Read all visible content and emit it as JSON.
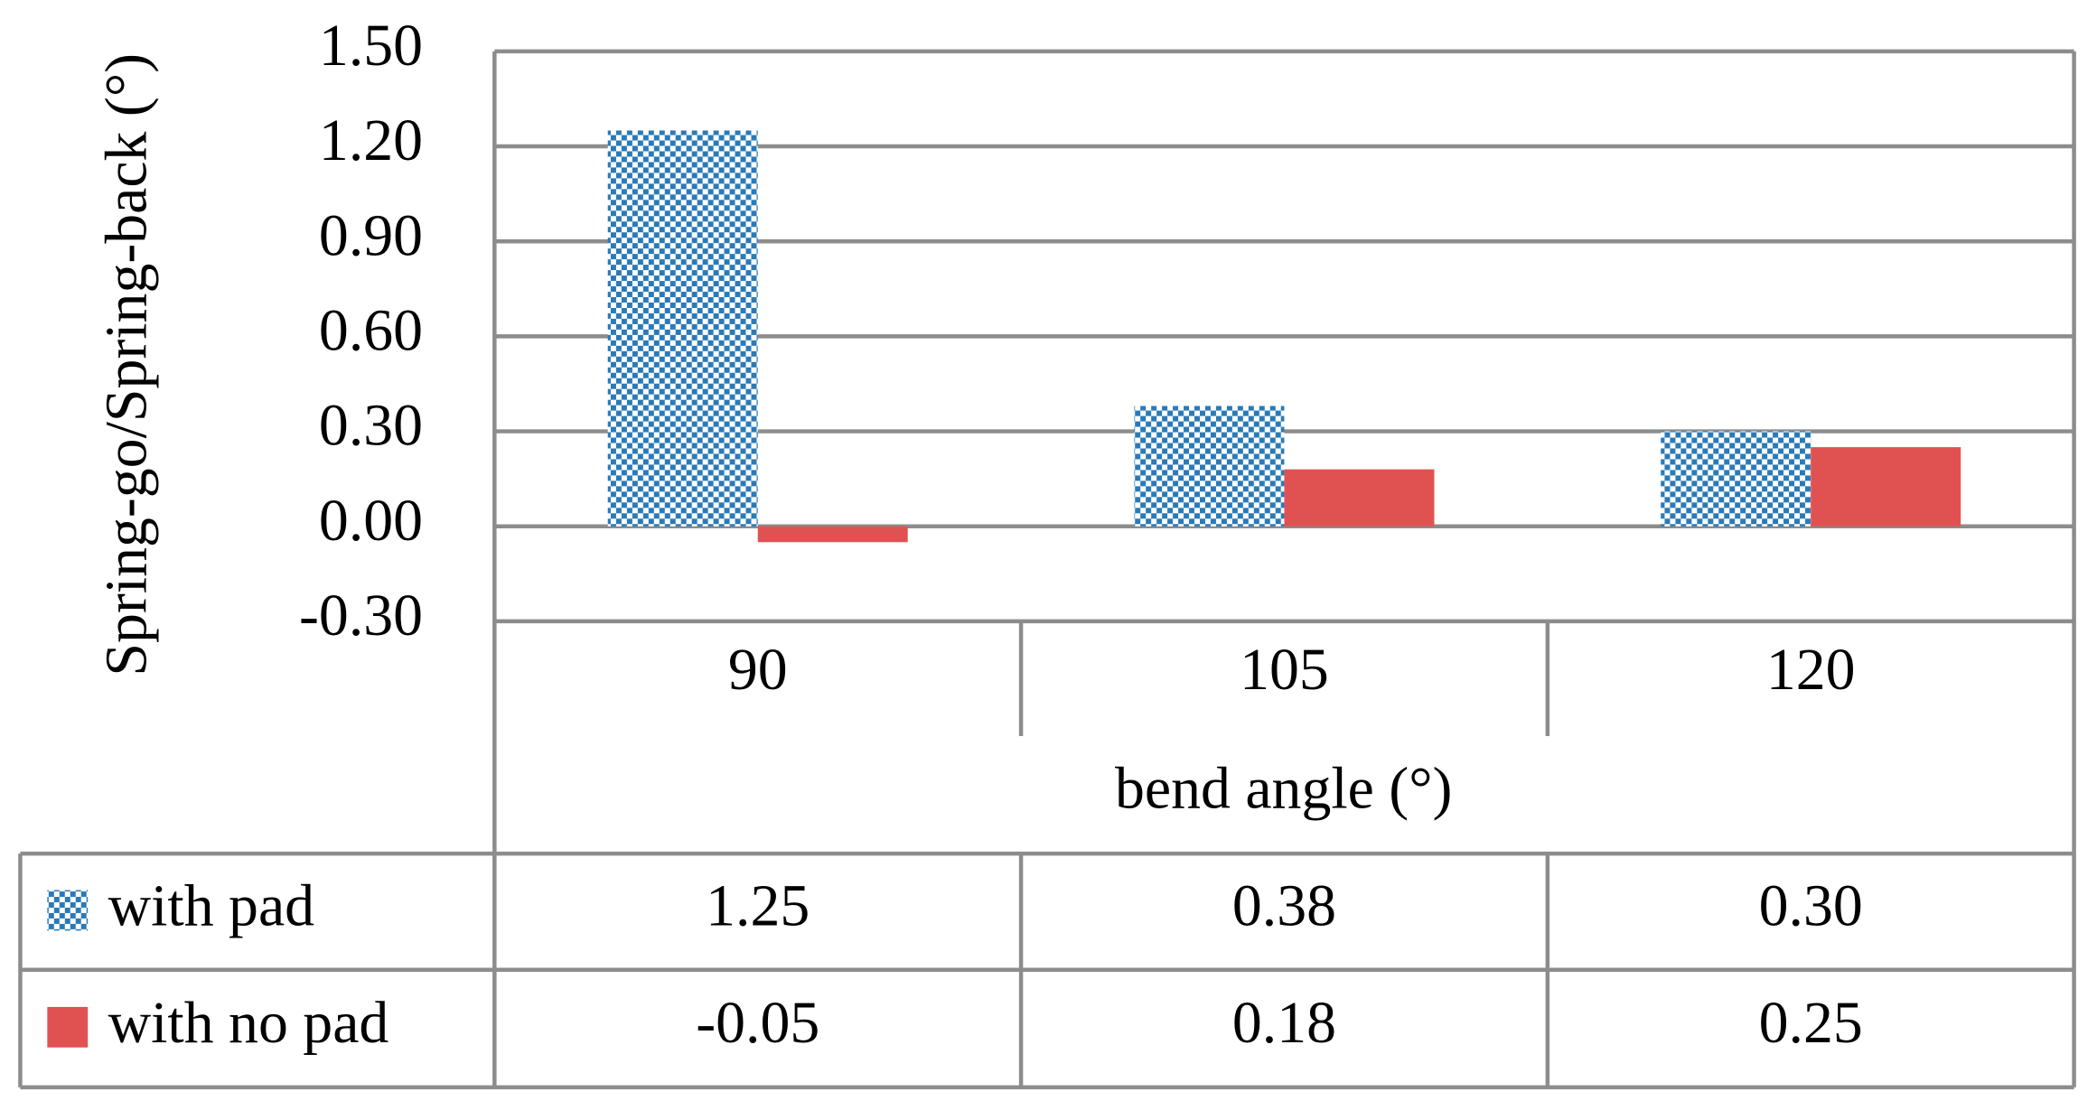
{
  "chart_data": {
    "type": "bar",
    "ylabel": "Spring-go/Spring-back (°)",
    "xlabel": "bend angle (°)",
    "categories": [
      "90",
      "105",
      "120"
    ],
    "series": [
      {
        "name": "with pad",
        "color": "#2a7ab8",
        "pattern": "checker",
        "values": [
          1.25,
          0.38,
          0.3
        ],
        "value_labels": [
          "1.25",
          "0.38",
          "0.30"
        ]
      },
      {
        "name": "with no pad",
        "color": "#e05252",
        "values": [
          -0.05,
          0.18,
          0.25
        ],
        "value_labels": [
          "-0.05",
          "0.18",
          "0.25"
        ]
      }
    ],
    "ylim": [
      -0.3,
      1.5
    ],
    "yticks": [
      {
        "value": -0.3,
        "label": "-0.30"
      },
      {
        "value": 0,
        "label": "0.00"
      },
      {
        "value": 0.3,
        "label": "0.30"
      },
      {
        "value": 0.6,
        "label": "0.60"
      },
      {
        "value": 0.9,
        "label": "0.90"
      },
      {
        "value": 1.2,
        "label": "1.20"
      },
      {
        "value": 1.5,
        "label": "1.50"
      }
    ],
    "grid": true,
    "data_table": true
  }
}
